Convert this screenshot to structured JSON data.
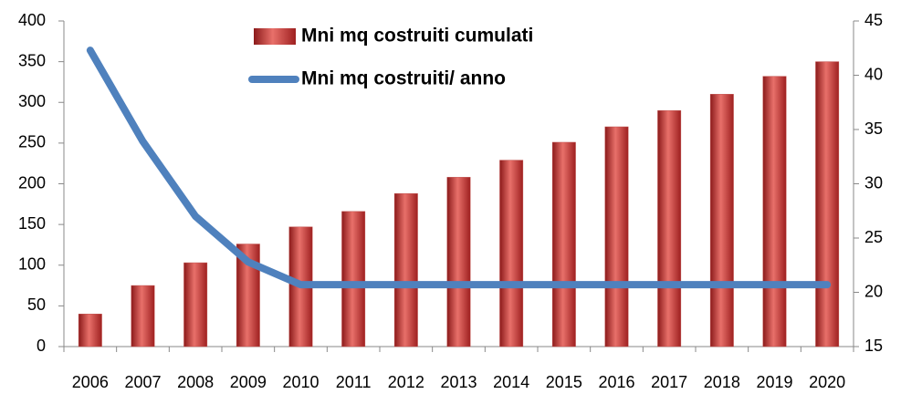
{
  "chart_data": {
    "type": "bar_line",
    "categories": [
      "2006",
      "2007",
      "2008",
      "2009",
      "2010",
      "2011",
      "2012",
      "2013",
      "2014",
      "2015",
      "2016",
      "2017",
      "2018",
      "2019",
      "2020"
    ],
    "series": [
      {
        "name": "Mni mq costruiti cumulati",
        "type": "bar",
        "color": "#c0504d",
        "values": [
          40,
          75,
          103,
          126,
          147,
          166,
          188,
          208,
          229,
          251,
          270,
          290,
          310,
          332,
          350
        ]
      },
      {
        "name": "Mni mq costruiti/ anno",
        "type": "line",
        "axis": "y2",
        "color": "#4f81bd",
        "values": [
          42.3,
          33.9,
          27.0,
          22.8,
          20.7,
          20.7,
          20.7,
          20.7,
          20.7,
          20.7,
          20.7,
          20.7,
          20.7,
          20.7,
          20.7
        ]
      }
    ],
    "ylim": [
      0,
      400
    ],
    "yticks": [
      0,
      50,
      100,
      150,
      200,
      250,
      300,
      350,
      400
    ],
    "y2lim": [
      15,
      45
    ],
    "y2ticks": [
      15,
      20,
      25,
      30,
      35,
      40,
      45
    ],
    "grid": false
  }
}
